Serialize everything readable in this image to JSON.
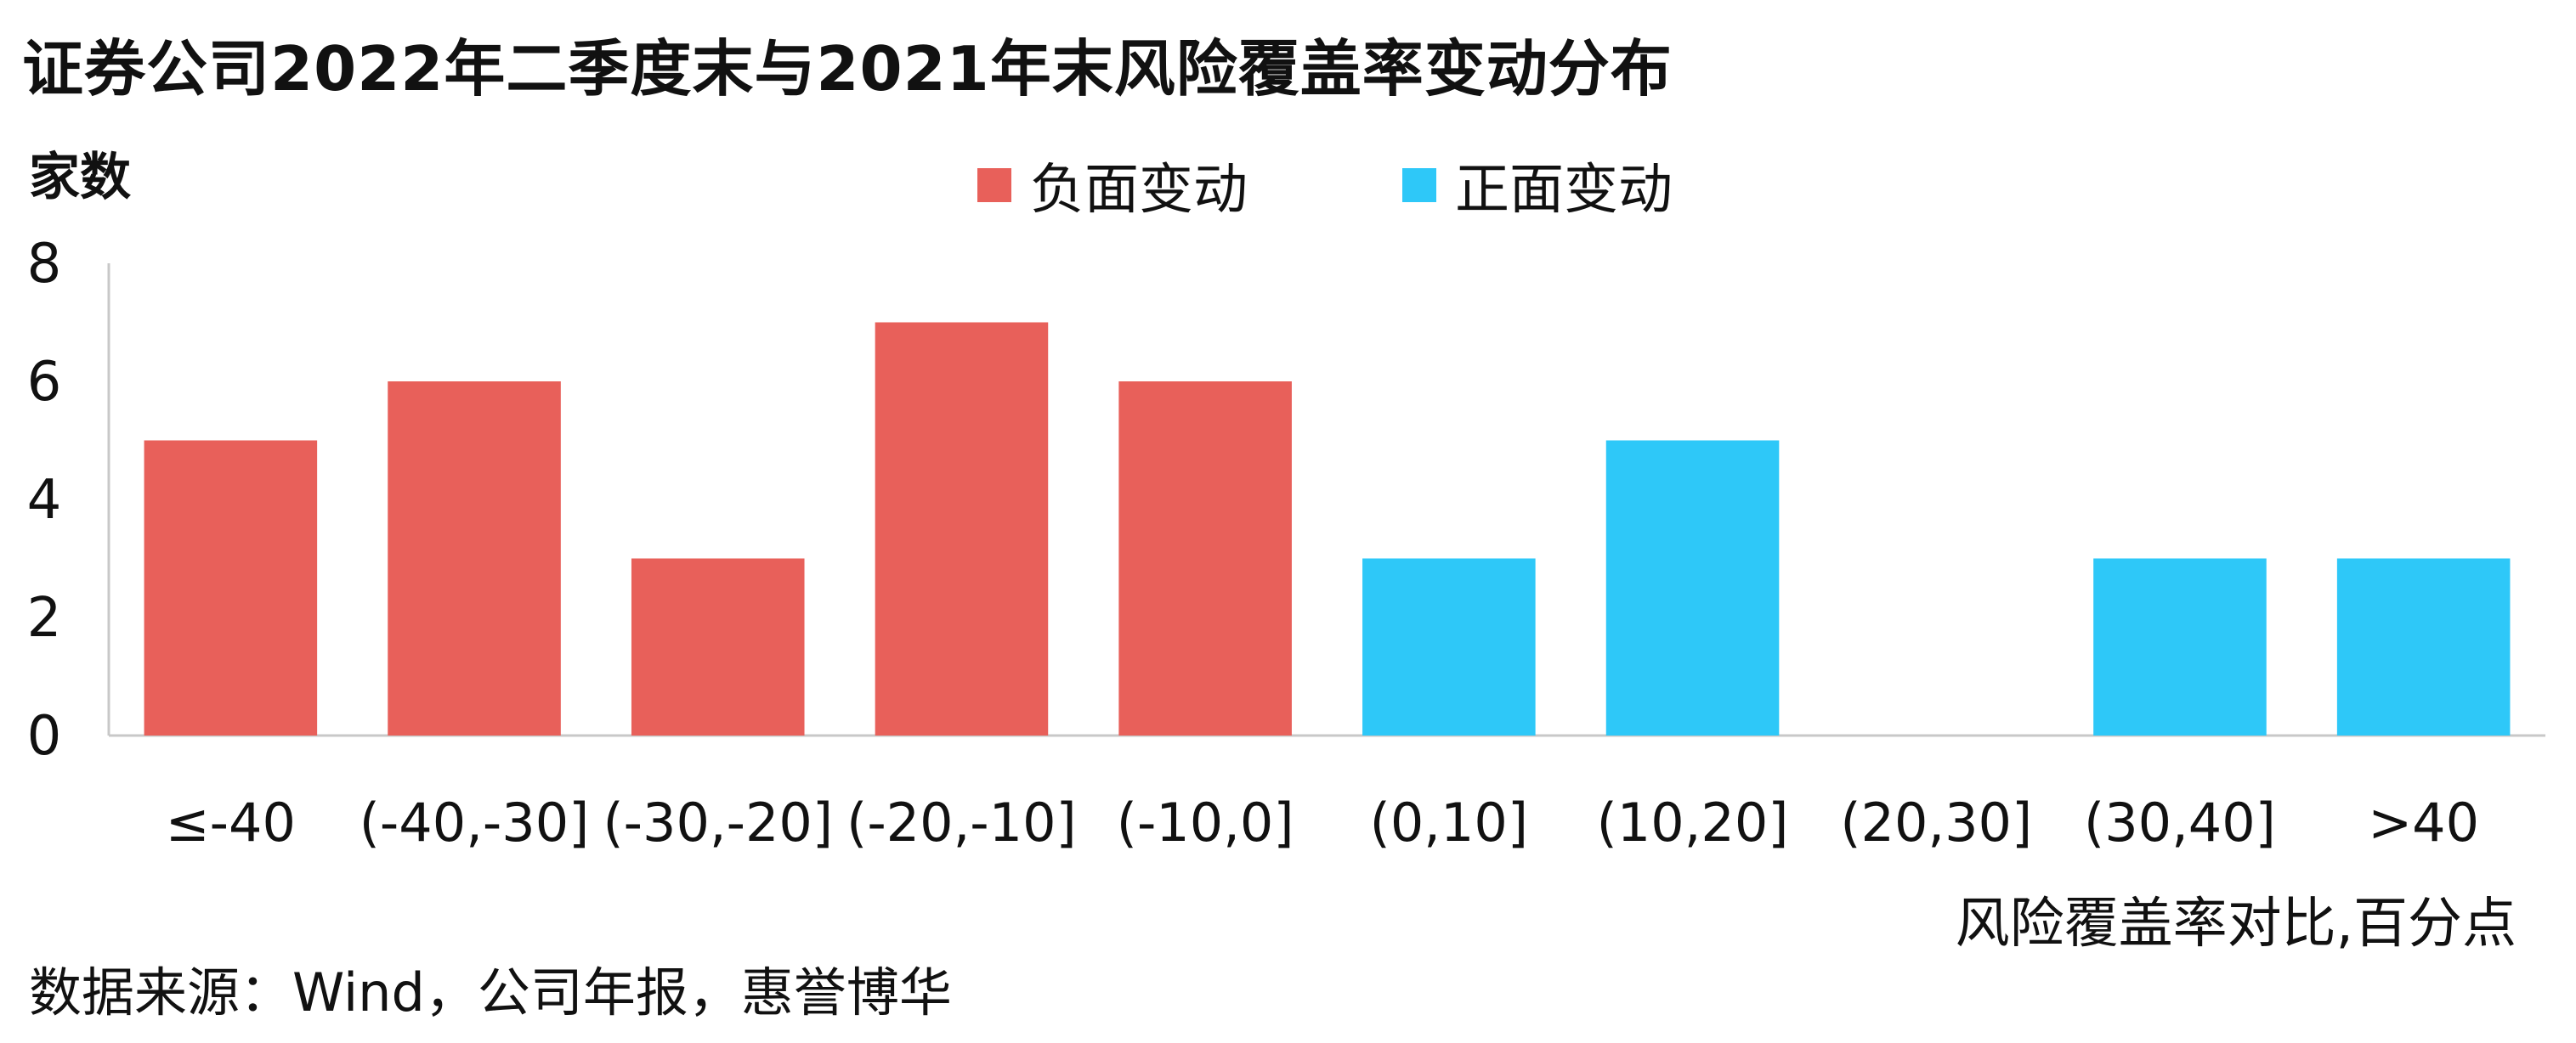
{
  "chart_data": {
    "type": "bar",
    "title": "证券公司2022年二季度末与2021年末风险覆盖率变动分布",
    "ylabel": "家数",
    "xlabel": "风险覆盖率对比,百分点",
    "categories": [
      "≤-40",
      "(-40,-30]",
      "(-30,-20]",
      "(-20,-10]",
      "(-10,0]",
      "(0,10]",
      "(10,20]",
      "(20,30]",
      "(30,40]",
      ">40"
    ],
    "series": [
      {
        "name": "负面变动",
        "color": "#E8605A",
        "values": [
          5,
          6,
          3,
          7,
          6,
          null,
          null,
          null,
          null,
          null
        ]
      },
      {
        "name": "正面变动",
        "color": "#2EC8F8",
        "values": [
          null,
          null,
          null,
          null,
          null,
          3,
          5,
          0,
          3,
          3
        ]
      }
    ],
    "ylim": [
      0,
      8
    ],
    "yticks": [
      0,
      2,
      4,
      6,
      8
    ],
    "grid": false,
    "legend_position": "top-center"
  },
  "source": "数据来源：Wind，公司年报，惠誉博华"
}
